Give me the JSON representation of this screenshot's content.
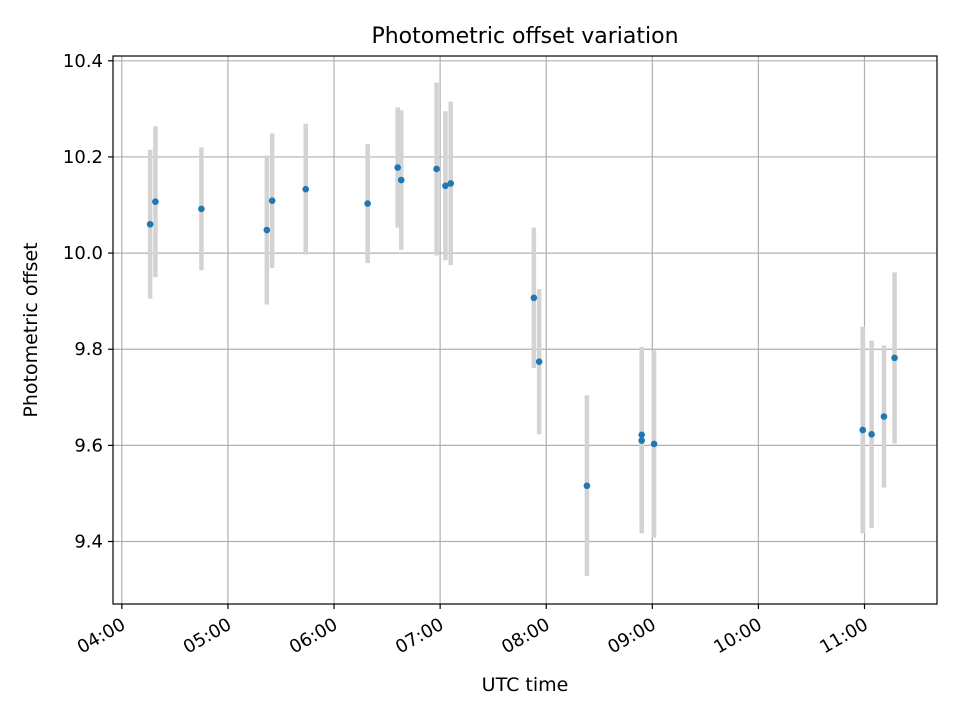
{
  "chart_data": {
    "type": "scatter",
    "title": "Photometric offset variation",
    "xlabel": "UTC time",
    "ylabel": "Photometric offset",
    "grid": true,
    "legend": "none",
    "x_axis_type": "time",
    "xlim": [
      "03:55",
      "11:41"
    ],
    "ylim": [
      9.27,
      10.41
    ],
    "x_ticks": [
      "04:00",
      "05:00",
      "06:00",
      "07:00",
      "08:00",
      "09:00",
      "10:00",
      "11:00"
    ],
    "y_ticks": [
      "9.4",
      "9.6",
      "9.8",
      "10.0",
      "10.2",
      "10.4"
    ],
    "y_tick_values": [
      9.4,
      9.6,
      9.8,
      10.0,
      10.2,
      10.4
    ],
    "series": [
      {
        "marker_color": "#1f77b4",
        "errorbar_color": "#d3d3d3",
        "points": [
          {
            "t": "04:16",
            "y": 10.06,
            "err": 0.155
          },
          {
            "t": "04:19",
            "y": 10.107,
            "err": 0.157
          },
          {
            "t": "04:45",
            "y": 10.092,
            "err": 0.128
          },
          {
            "t": "05:22",
            "y": 10.048,
            "err": 0.155
          },
          {
            "t": "05:25",
            "y": 10.109,
            "err": 0.14
          },
          {
            "t": "05:44",
            "y": 10.133,
            "err": 0.136
          },
          {
            "t": "06:19",
            "y": 10.103,
            "err": 0.124
          },
          {
            "t": "06:36",
            "y": 10.178,
            "err": 0.125
          },
          {
            "t": "06:38",
            "y": 10.152,
            "err": 0.145
          },
          {
            "t": "06:58",
            "y": 10.175,
            "err": 0.18
          },
          {
            "t": "07:03",
            "y": 10.14,
            "err": 0.155
          },
          {
            "t": "07:06",
            "y": 10.145,
            "err": 0.17
          },
          {
            "t": "07:53",
            "y": 9.907,
            "err": 0.146
          },
          {
            "t": "07:56",
            "y": 9.774,
            "err": 0.151
          },
          {
            "t": "08:23",
            "y": 9.516,
            "err": 0.188
          },
          {
            "t": "08:54",
            "y": 9.622,
            "err": 0.183
          },
          {
            "t": "08:54",
            "y": 9.61,
            "err": 0.193
          },
          {
            "t": "09:01",
            "y": 9.603,
            "err": 0.195
          },
          {
            "t": "10:59",
            "y": 9.632,
            "err": 0.215
          },
          {
            "t": "11:04",
            "y": 9.623,
            "err": 0.195
          },
          {
            "t": "11:11",
            "y": 9.66,
            "err": 0.148
          },
          {
            "t": "11:17",
            "y": 9.782,
            "err": 0.178
          }
        ]
      }
    ]
  }
}
